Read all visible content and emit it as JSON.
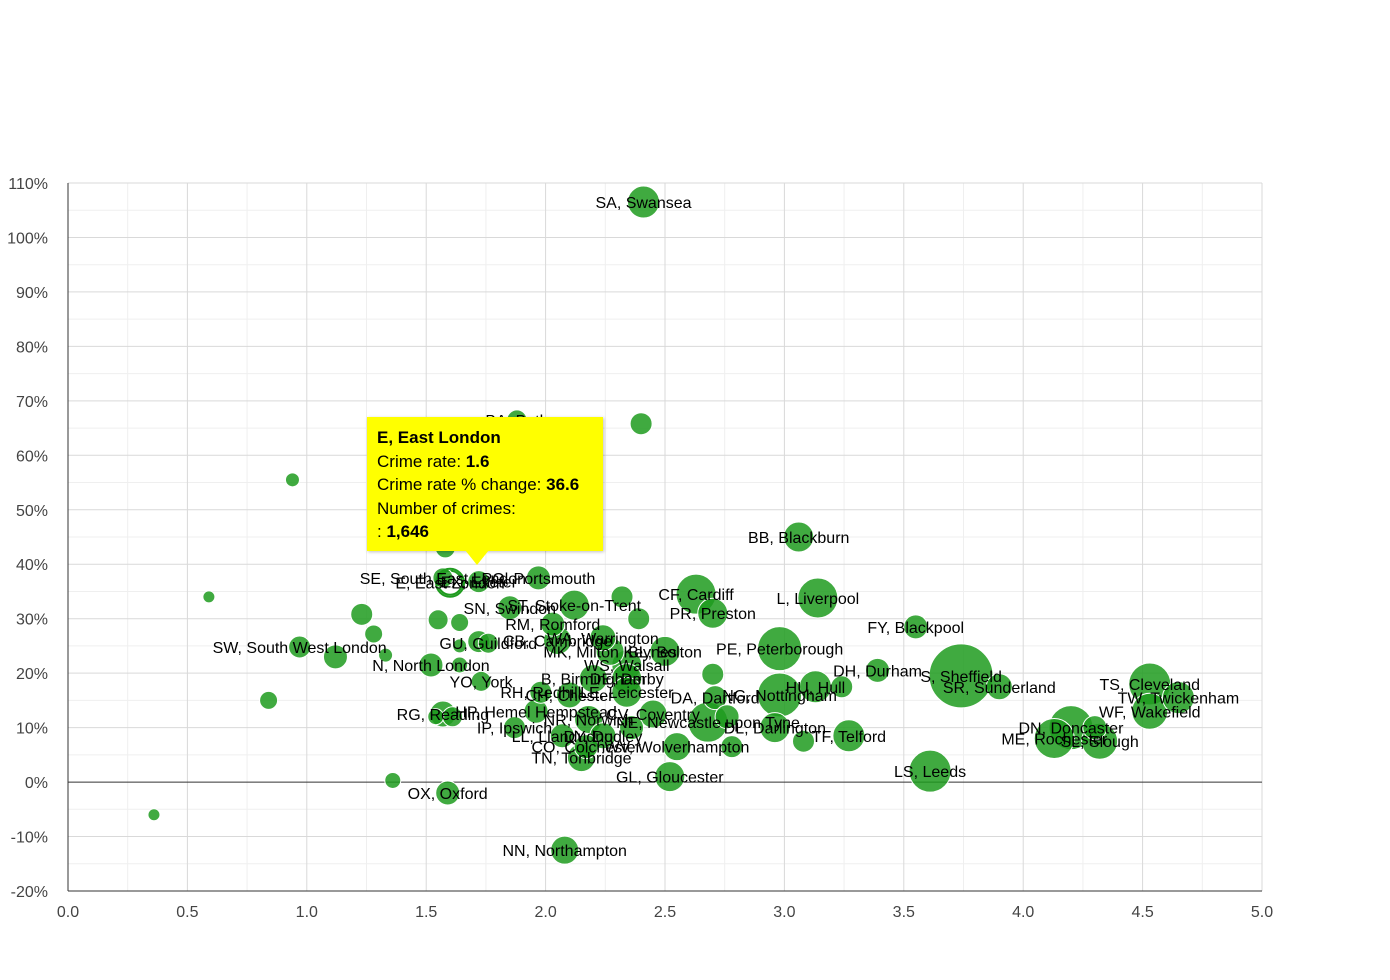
{
  "chart_data": {
    "type": "scatter",
    "xlabel": "",
    "ylabel": "",
    "xlim": [
      0,
      5
    ],
    "ylim": [
      -20,
      110
    ],
    "xticks": [
      "0.0",
      "0.5",
      "1.0",
      "1.5",
      "2.0",
      "2.5",
      "3.0",
      "3.5",
      "4.0",
      "4.5",
      "5.0"
    ],
    "yticks": [
      "110%",
      "100%",
      "90%",
      "80%",
      "70%",
      "60%",
      "50%",
      "40%",
      "30%",
      "20%",
      "10%",
      "0%",
      "-10%",
      "-20%"
    ],
    "grid": true,
    "colors": {
      "bubble": "#1f9b1f",
      "tooltip": "#ffff00"
    },
    "points": [
      {
        "label": "SA, Swansea",
        "x": 2.41,
        "y": 106.5,
        "r": 16
      },
      {
        "label": "BA, Bath",
        "x": 1.88,
        "y": 66.5,
        "r": 10
      },
      {
        "label": "",
        "x": 2.4,
        "y": 65.8,
        "r": 11
      },
      {
        "label": "",
        "x": 0.94,
        "y": 55.5,
        "r": 7
      },
      {
        "label": "",
        "x": 2.19,
        "y": 51.5,
        "r": 9
      },
      {
        "label": "",
        "x": 1.58,
        "y": 43,
        "r": 10
      },
      {
        "label": "BB, Blackburn",
        "x": 3.06,
        "y": 45,
        "r": 15
      },
      {
        "label": "SE, South East London",
        "x": 1.57,
        "y": 37.5,
        "r": 10
      },
      {
        "label": "E, East London",
        "x": 1.6,
        "y": 36.6,
        "r": 12,
        "highlight": true
      },
      {
        "label": "EX, Exeter",
        "x": 1.72,
        "y": 36.8,
        "r": 11
      },
      {
        "label": "PO, Portsmouth",
        "x": 1.97,
        "y": 37.5,
        "r": 12
      },
      {
        "label": "CF, Cardiff",
        "x": 2.63,
        "y": 34.5,
        "r": 20
      },
      {
        "label": "L, Liverpool",
        "x": 3.14,
        "y": 33.8,
        "r": 20
      },
      {
        "label": "",
        "x": 2.32,
        "y": 34,
        "r": 11
      },
      {
        "label": "ST, Stoke-on-Trent",
        "x": 2.12,
        "y": 32.5,
        "r": 15
      },
      {
        "label": "SN, Swindon",
        "x": 1.85,
        "y": 32,
        "r": 12
      },
      {
        "label": "PR, Preston",
        "x": 2.7,
        "y": 31,
        "r": 15
      },
      {
        "label": "",
        "x": 0.59,
        "y": 34,
        "r": 6
      },
      {
        "label": "",
        "x": 1.23,
        "y": 30.8,
        "r": 11
      },
      {
        "label": "",
        "x": 1.55,
        "y": 29.8,
        "r": 10
      },
      {
        "label": "",
        "x": 1.64,
        "y": 29.3,
        "r": 9
      },
      {
        "label": "RM, Romford",
        "x": 2.03,
        "y": 29,
        "r": 12
      },
      {
        "label": "",
        "x": 2.39,
        "y": 30,
        "r": 11
      },
      {
        "label": "FY, Blackpool",
        "x": 3.55,
        "y": 28.5,
        "r": 12
      },
      {
        "label": "",
        "x": 1.28,
        "y": 27.2,
        "r": 9
      },
      {
        "label": "WA, Warrington",
        "x": 2.24,
        "y": 26.5,
        "r": 13
      },
      {
        "label": "GU, Guildford",
        "x": 1.76,
        "y": 25.5,
        "r": 10
      },
      {
        "label": "CB, Cambridge",
        "x": 2.05,
        "y": 26,
        "r": 14
      },
      {
        "label": "",
        "x": 1.64,
        "y": 25,
        "r": 7
      },
      {
        "label": "",
        "x": 1.72,
        "y": 25.8,
        "r": 11
      },
      {
        "label": "SW, South West London",
        "x": 0.97,
        "y": 24.8,
        "r": 11
      },
      {
        "label": "",
        "x": 1.12,
        "y": 23,
        "r": 12
      },
      {
        "label": "",
        "x": 1.33,
        "y": 23.3,
        "r": 7
      },
      {
        "label": "MK, Milton Keynes",
        "x": 2.27,
        "y": 24,
        "r": 14
      },
      {
        "label": "PE, Peterborough",
        "x": 2.98,
        "y": 24.5,
        "r": 22
      },
      {
        "label": "BL, Bolton",
        "x": 2.5,
        "y": 24,
        "r": 15
      },
      {
        "label": "N, North London",
        "x": 1.52,
        "y": 21.5,
        "r": 12
      },
      {
        "label": "",
        "x": 1.64,
        "y": 21.5,
        "r": 8
      },
      {
        "label": "WS, Walsall",
        "x": 2.34,
        "y": 21.5,
        "r": 15
      },
      {
        "label": "DH, Durham",
        "x": 3.39,
        "y": 20.5,
        "r": 12
      },
      {
        "label": "S, Sheffield",
        "x": 3.74,
        "y": 19.5,
        "r": 32
      },
      {
        "label": "B, Birmingham",
        "x": 2.2,
        "y": 19,
        "r": 14
      },
      {
        "label": "DE, Derby",
        "x": 2.34,
        "y": 19,
        "r": 15
      },
      {
        "label": "",
        "x": 2.7,
        "y": 19.8,
        "r": 11
      },
      {
        "label": "YO, York",
        "x": 1.73,
        "y": 18.5,
        "r": 10
      },
      {
        "label": "TS, Cleveland",
        "x": 4.53,
        "y": 18,
        "r": 21
      },
      {
        "label": "TW, Twickenham",
        "x": 4.65,
        "y": 15.5,
        "r": 16
      },
      {
        "label": "SR, Sunderland",
        "x": 3.9,
        "y": 17.5,
        "r": 13
      },
      {
        "label": "HU, Hull",
        "x": 3.13,
        "y": 17.5,
        "r": 16
      },
      {
        "label": "",
        "x": 3.24,
        "y": 17.5,
        "r": 11
      },
      {
        "label": "RH, Redhill",
        "x": 1.98,
        "y": 16.5,
        "r": 11
      },
      {
        "label": "LE, Leicester",
        "x": 2.34,
        "y": 16.5,
        "r": 15
      },
      {
        "label": "CH, Chester",
        "x": 2.1,
        "y": 16,
        "r": 13
      },
      {
        "label": "NG, Nottingham",
        "x": 2.98,
        "y": 16,
        "r": 22
      },
      {
        "label": "DA, Dartford",
        "x": 2.71,
        "y": 15.5,
        "r": 12
      },
      {
        "label": "",
        "x": 0.84,
        "y": 15,
        "r": 9
      },
      {
        "label": "WF, Wakefield",
        "x": 4.53,
        "y": 13,
        "r": 18
      },
      {
        "label": "HP, Hemel Hempstead",
        "x": 1.96,
        "y": 13,
        "r": 12
      },
      {
        "label": "RG, Reading",
        "x": 1.57,
        "y": 12.5,
        "r": 13
      },
      {
        "label": "",
        "x": 1.54,
        "y": 12,
        "r": 8
      },
      {
        "label": "",
        "x": 1.61,
        "y": 12,
        "r": 10
      },
      {
        "label": "CV, Coventry",
        "x": 2.45,
        "y": 12.5,
        "r": 14
      },
      {
        "label": "NE, Newcastle upon Tyne",
        "x": 2.68,
        "y": 11,
        "r": 20
      },
      {
        "label": "",
        "x": 2.76,
        "y": 12,
        "r": 12
      },
      {
        "label": "NR, Norwich",
        "x": 2.18,
        "y": 11.5,
        "r": 14
      },
      {
        "label": "",
        "x": 2.36,
        "y": 10,
        "r": 12
      },
      {
        "label": "DL, Darlington",
        "x": 2.96,
        "y": 10,
        "r": 15
      },
      {
        "label": "DN, Doncaster",
        "x": 4.2,
        "y": 10,
        "r": 22
      },
      {
        "label": "",
        "x": 4.3,
        "y": 10,
        "r": 12
      },
      {
        "label": "IP, Ipswich",
        "x": 1.87,
        "y": 10,
        "r": 11
      },
      {
        "label": "LL, Llandudno",
        "x": 2.07,
        "y": 8.5,
        "r": 12
      },
      {
        "label": "DY, Dudley",
        "x": 2.24,
        "y": 8.5,
        "r": 13
      },
      {
        "label": "TF, Telford",
        "x": 3.27,
        "y": 8.5,
        "r": 16
      },
      {
        "label": "ME, Rochester",
        "x": 4.13,
        "y": 8,
        "r": 20
      },
      {
        "label": "SL, Slough",
        "x": 4.32,
        "y": 7.5,
        "r": 18
      },
      {
        "label": "",
        "x": 3.08,
        "y": 7.5,
        "r": 11
      },
      {
        "label": "CO, Colchester",
        "x": 2.17,
        "y": 6.5,
        "r": 12
      },
      {
        "label": "WV, Wolverhampton",
        "x": 2.55,
        "y": 6.5,
        "r": 14
      },
      {
        "label": "",
        "x": 2.78,
        "y": 6.5,
        "r": 11
      },
      {
        "label": "TN, Tonbridge",
        "x": 2.15,
        "y": 4.5,
        "r": 14
      },
      {
        "label": "LS, Leeds",
        "x": 3.61,
        "y": 2,
        "r": 21
      },
      {
        "label": "GL, Gloucester",
        "x": 2.52,
        "y": 1,
        "r": 15
      },
      {
        "label": "",
        "x": 1.36,
        "y": 0.3,
        "r": 8
      },
      {
        "label": "OX, Oxford",
        "x": 1.59,
        "y": -2,
        "r": 12
      },
      {
        "label": "",
        "x": 0.36,
        "y": -6,
        "r": 6
      },
      {
        "label": "NN, Northampton",
        "x": 2.08,
        "y": -12.5,
        "r": 14
      }
    ],
    "tooltip": {
      "title": "E, East London",
      "rate_label": "Crime rate: ",
      "rate_value": "1.6",
      "change_label": "Crime rate % change: ",
      "change_value": "36.6",
      "count_label": "Number of crimes:",
      "count_prefix": ": ",
      "count_value": "1,646"
    }
  }
}
